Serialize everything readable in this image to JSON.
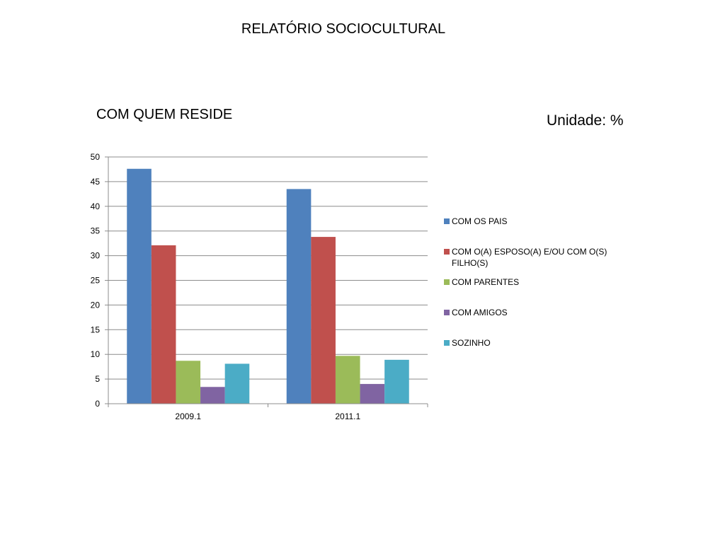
{
  "page": {
    "title": "RELATÓRIO SOCIOCULTURAL",
    "unit": "Unidade: %"
  },
  "chart_data": {
    "type": "bar",
    "title": "COM QUEM RESIDE",
    "xlabel": "",
    "ylabel": "",
    "categories": [
      "2009.1",
      "2011.1"
    ],
    "series": [
      {
        "name": "COM OS PAIS",
        "color": "#4F81BD",
        "values": [
          47.6,
          43.5
        ]
      },
      {
        "name": "COM O(A) ESPOSO(A) E/OU COM O(S) FILHO(S)",
        "color": "#C0504D",
        "values": [
          32.1,
          33.8
        ]
      },
      {
        "name": "COM PARENTES",
        "color": "#9BBB59",
        "values": [
          8.7,
          9.7
        ]
      },
      {
        "name": "COM AMIGOS",
        "color": "#8064A2",
        "values": [
          3.4,
          4.0
        ]
      },
      {
        "name": "SOZINHO",
        "color": "#4BACC6",
        "values": [
          8.1,
          8.9
        ]
      }
    ],
    "ylim": [
      0,
      50
    ],
    "yticks": [
      "0",
      "5",
      "10",
      "15",
      "20",
      "25",
      "30",
      "35",
      "40",
      "45",
      "50"
    ],
    "grid": true,
    "legend_position": "right"
  }
}
